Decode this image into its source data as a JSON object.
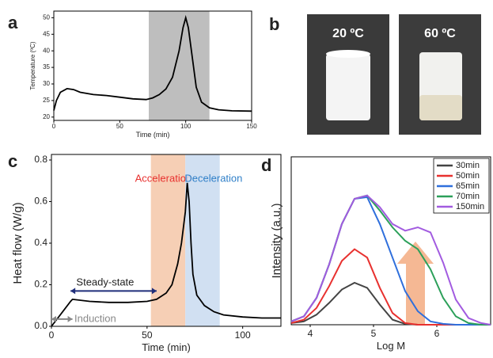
{
  "chart_data": [
    {
      "type": "line",
      "label": "a",
      "xlabel": "Time (min)",
      "ylabel": "Temperature (ºC)",
      "xlim": [
        0,
        150
      ],
      "ylim": [
        19,
        52
      ],
      "xticks": [
        0,
        50,
        100,
        150
      ],
      "yticks": [
        20,
        25,
        30,
        35,
        40,
        45,
        50
      ],
      "bands": [
        {
          "from": 72,
          "to": 118,
          "color": "#b3b3b3"
        }
      ],
      "x": [
        0,
        2,
        5,
        10,
        15,
        20,
        30,
        40,
        50,
        60,
        70,
        75,
        80,
        85,
        90,
        95,
        98,
        100,
        102,
        105,
        108,
        112,
        118,
        125,
        135,
        150
      ],
      "series": [
        {
          "color": "#000000",
          "values": [
            22,
            25,
            27.5,
            28.6,
            28.3,
            27.5,
            26.8,
            26.5,
            26,
            25.5,
            25.3,
            25.8,
            26.8,
            28.5,
            32,
            40,
            47,
            50,
            47,
            38,
            29,
            24.5,
            22.8,
            22.2,
            21.9,
            21.8
          ]
        }
      ]
    },
    {
      "type": "line",
      "label": "c",
      "xlabel": "Time (min)",
      "ylabel": "Heat flow (W/g)",
      "xlim": [
        0,
        120
      ],
      "ylim": [
        0,
        0.8
      ],
      "xticks": [
        0,
        50,
        100
      ],
      "yticks": [
        {
          "value": 0,
          "label": "0.0"
        },
        0.2,
        0.4,
        0.6,
        0.8
      ],
      "bands": [
        {
          "label": "Acceleration",
          "from": 52,
          "to": 70,
          "color": "#f5c7a8",
          "text_color": "#e8312f"
        },
        {
          "label": "Deceleration",
          "from": 70,
          "to": 88,
          "color": "#c9daf0",
          "text_color": "#2f7fc8"
        }
      ],
      "annotations": [
        "Steady-state",
        "Induction"
      ],
      "x": [
        0,
        5,
        10,
        11,
        20,
        30,
        40,
        50,
        55,
        60,
        63,
        66,
        68,
        70,
        71,
        72,
        73,
        74,
        76,
        80,
        85,
        90,
        100,
        110,
        120
      ],
      "series": [
        {
          "color": "#000000",
          "values": [
            0,
            0.06,
            0.12,
            0.13,
            0.12,
            0.115,
            0.115,
            0.12,
            0.13,
            0.16,
            0.2,
            0.3,
            0.4,
            0.55,
            0.69,
            0.6,
            0.4,
            0.25,
            0.15,
            0.1,
            0.07,
            0.055,
            0.045,
            0.04,
            0.04
          ]
        }
      ]
    },
    {
      "type": "line",
      "label": "d",
      "xlabel": "Log M",
      "ylabel": "Intensity (a.u.)",
      "xlim": [
        3.7,
        6.85
      ],
      "ylim": [
        0,
        1
      ],
      "xticks": [
        4,
        5,
        6
      ],
      "legend": "upper right",
      "x": [
        3.7,
        3.9,
        4.1,
        4.3,
        4.5,
        4.7,
        4.9,
        5.1,
        5.3,
        5.5,
        5.7,
        5.9,
        6.1,
        6.3,
        6.5,
        6.7,
        6.85
      ],
      "series": [
        {
          "name": "30min",
          "color": "#444444",
          "values": [
            0.01,
            0.02,
            0.06,
            0.13,
            0.21,
            0.25,
            0.22,
            0.12,
            0.03,
            0.005,
            0,
            0,
            0,
            0,
            0,
            0,
            0
          ]
        },
        {
          "name": "50min",
          "color": "#e8312f",
          "values": [
            0.01,
            0.03,
            0.1,
            0.23,
            0.38,
            0.45,
            0.4,
            0.22,
            0.07,
            0.01,
            0,
            0,
            0,
            0,
            0,
            0,
            0
          ]
        },
        {
          "name": "65min",
          "color": "#2f6fdc",
          "values": [
            0.02,
            0.05,
            0.16,
            0.36,
            0.6,
            0.75,
            0.76,
            0.6,
            0.4,
            0.2,
            0.08,
            0.02,
            0.005,
            0,
            0,
            0,
            0
          ]
        },
        {
          "name": "70min",
          "color": "#2ca05a",
          "values": [
            0.02,
            0.05,
            0.16,
            0.36,
            0.6,
            0.75,
            0.77,
            0.68,
            0.58,
            0.5,
            0.45,
            0.33,
            0.16,
            0.05,
            0.01,
            0,
            0
          ]
        },
        {
          "name": "150min",
          "color": "#a25be0",
          "values": [
            0.02,
            0.05,
            0.16,
            0.36,
            0.6,
            0.75,
            0.77,
            0.7,
            0.6,
            0.56,
            0.58,
            0.55,
            0.37,
            0.15,
            0.04,
            0.01,
            0
          ]
        }
      ]
    }
  ],
  "photo_panel": {
    "label": "b",
    "captions": [
      "20 ºC",
      "60 ºC"
    ]
  }
}
